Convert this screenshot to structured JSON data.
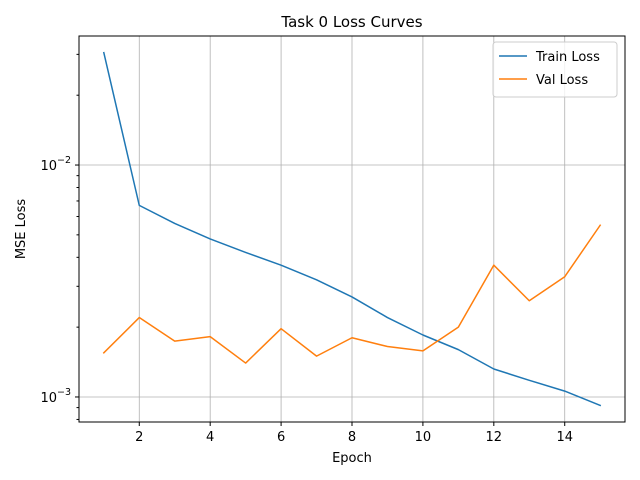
{
  "chart_data": {
    "type": "line",
    "title": "Task 0 Loss Curves",
    "xlabel": "Epoch",
    "ylabel": "MSE Loss",
    "yscale": "log",
    "grid": true,
    "legend_position": "top-right",
    "xlim": [
      0.3,
      15.7
    ],
    "ylim": [
      0.00078,
      0.036
    ],
    "x_ticks": [
      2,
      4,
      6,
      8,
      10,
      12,
      14
    ],
    "y_ticks": [
      {
        "value": 0.001,
        "base": "10",
        "exponent": "−3"
      },
      {
        "value": 0.01,
        "base": "10",
        "exponent": "−2"
      }
    ],
    "x": [
      1,
      2,
      3,
      4,
      5,
      6,
      7,
      8,
      9,
      10,
      11,
      12,
      13,
      14,
      15
    ],
    "series": [
      {
        "name": "Train Loss",
        "color": "#1f77b4",
        "values": [
          0.0305,
          0.0067,
          0.0056,
          0.0048,
          0.0042,
          0.0037,
          0.0032,
          0.0027,
          0.0022,
          0.00185,
          0.0016,
          0.00132,
          0.00118,
          0.00106,
          0.00092
        ]
      },
      {
        "name": "Val Loss",
        "color": "#ff7f0e",
        "values": [
          0.00155,
          0.0022,
          0.00174,
          0.00182,
          0.0014,
          0.00197,
          0.0015,
          0.0018,
          0.00165,
          0.00158,
          0.002,
          0.0037,
          0.0026,
          0.0033,
          0.0055
        ]
      }
    ]
  }
}
